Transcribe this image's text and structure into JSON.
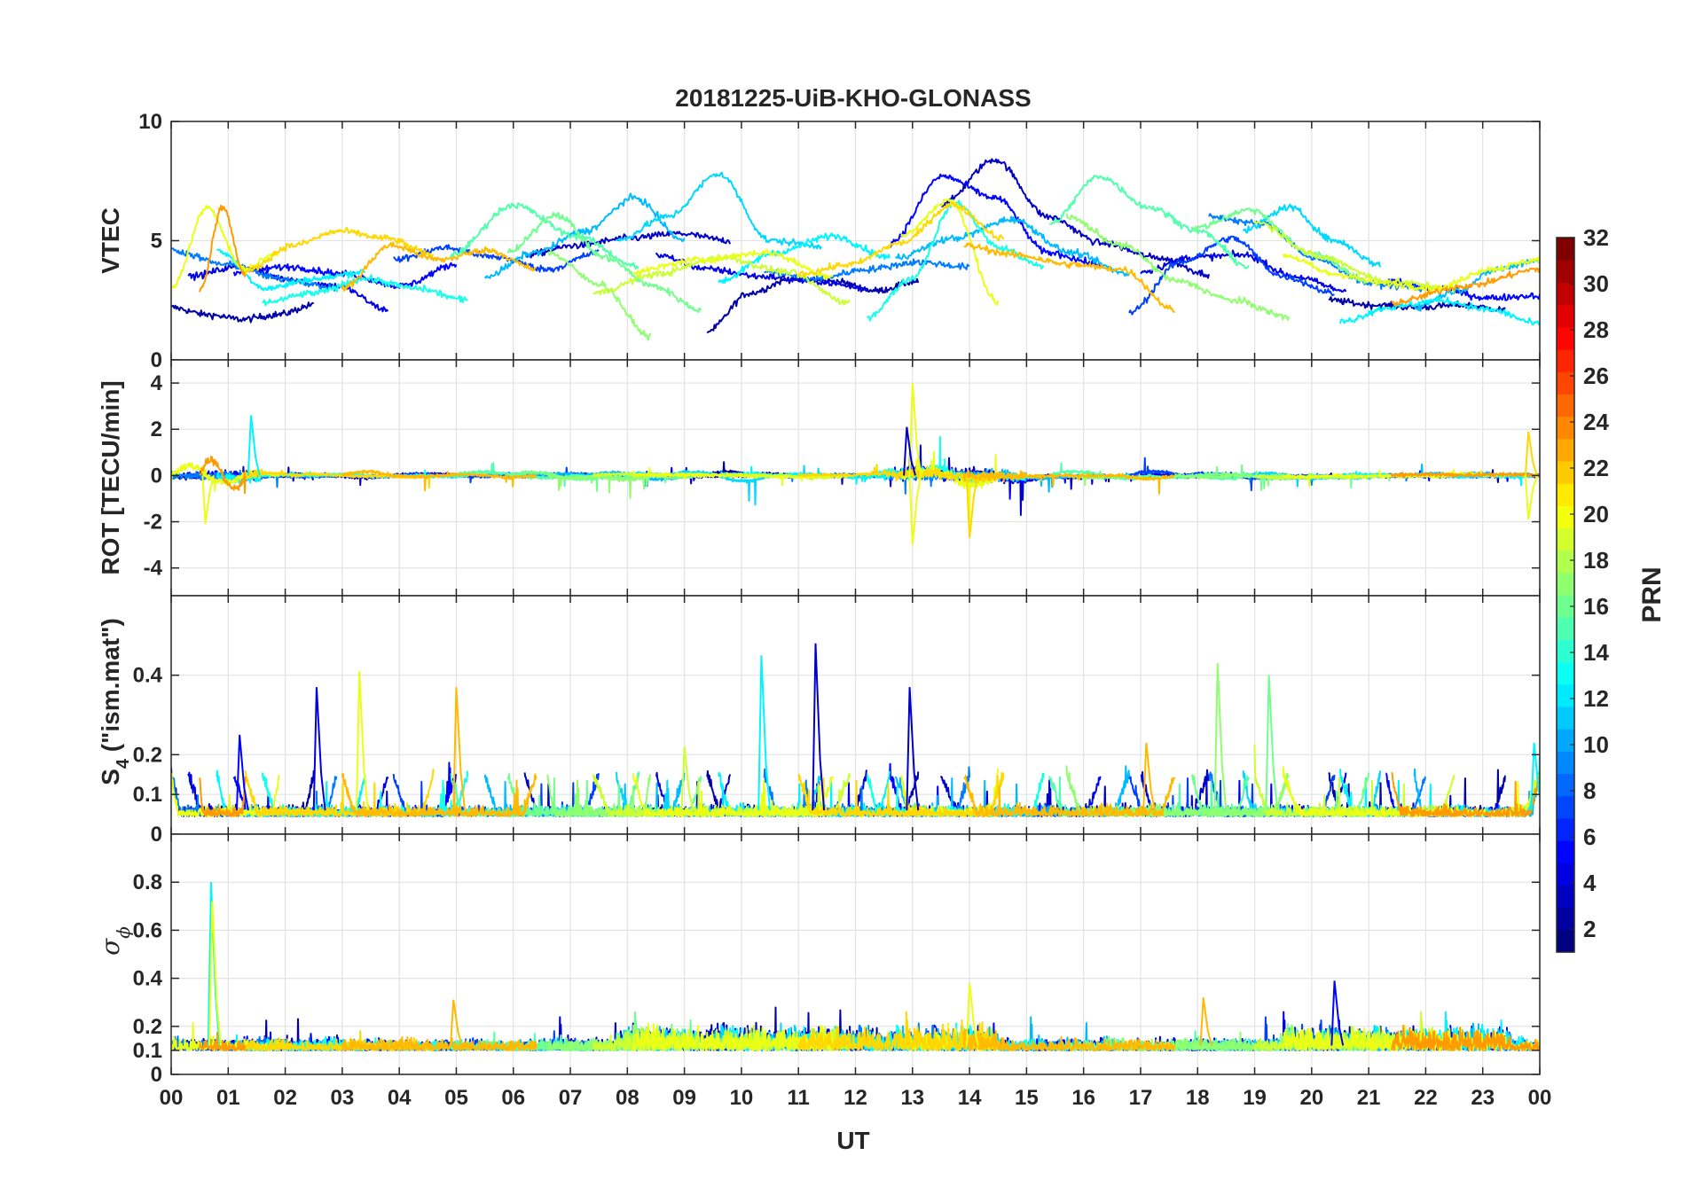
{
  "chart_data": {
    "type": "line",
    "title": "20181225-UiB-KHO-GLONASS",
    "xlabel": "UT",
    "x_tick_labels": [
      "00",
      "01",
      "02",
      "03",
      "04",
      "05",
      "06",
      "07",
      "08",
      "09",
      "10",
      "11",
      "12",
      "13",
      "14",
      "15",
      "16",
      "17",
      "18",
      "19",
      "20",
      "21",
      "22",
      "23",
      "00"
    ],
    "xlim": [
      0,
      24
    ],
    "grid": true,
    "panels": [
      {
        "id": "vtec",
        "ylabel": "VTEC",
        "ylim": [
          0,
          10
        ],
        "yticks": [
          0,
          5,
          10
        ],
        "ytick_labels": [
          "0",
          "5",
          "10"
        ],
        "series_summary": "VTEC per GLONASS PRN, roughly 1 to 8.5 TECU, peak near 14 UT"
      },
      {
        "id": "rot",
        "ylabel": "ROT [TECU/min]",
        "ylim": [
          -5.2,
          5
        ],
        "yticks": [
          -4,
          -2,
          0,
          2,
          4
        ],
        "ytick_labels": [
          "-4",
          "-2",
          "0",
          "2",
          "4"
        ],
        "series_summary": "Rate of TEC mostly within +/-0.5, spikes to about 4 near 13 UT"
      },
      {
        "id": "s4",
        "ylabel_main": "S",
        "ylabel_sub": "4",
        "ylabel_rest": " (\"ism.mat\")",
        "ylim": [
          0,
          0.6
        ],
        "yticks": [
          0,
          0.1,
          0.2,
          0.4
        ],
        "ytick_labels": [
          "0",
          "0.1",
          "0.2",
          "0.4"
        ],
        "series_summary": "Amplitude scintillation index mostly 0.03-0.15, spikes to about 0.48 near 11.3 UT"
      },
      {
        "id": "sigphi",
        "ylabel_main": "σ",
        "ylabel_sub": "ϕ",
        "ylim": [
          0,
          1
        ],
        "yticks": [
          0,
          0.1,
          0.2,
          0.4,
          0.6,
          0.8
        ],
        "ytick_labels": [
          "0",
          "0.1",
          "0.2",
          "0.4",
          "0.6",
          "0.8"
        ],
        "series_summary": "Phase scintillation index mostly 0.08-0.25, spike to about 0.8 near 0.7 UT"
      }
    ],
    "series": [
      {
        "prn": 1,
        "segments": [
          {
            "start": 0.0,
            "end": 2.5,
            "vtec": [
              2.2,
              1.9,
              1.7,
              1.9,
              2.3
            ]
          },
          {
            "start": 9.4,
            "end": 13.1,
            "vtec": [
              1.2,
              2.8,
              3.4,
              3.3,
              2.9,
              3.3
            ]
          },
          {
            "start": 20.3,
            "end": 23.4,
            "vtec": [
              2.5,
              2.3,
              2.2,
              2.3,
              2.1
            ]
          }
        ]
      },
      {
        "prn": 2,
        "segments": [
          {
            "start": 6.2,
            "end": 9.8,
            "vtec": [
              4.4,
              4.8,
              5.1,
              5.3,
              5.0
            ]
          },
          {
            "start": 13.5,
            "end": 18.2,
            "vtec": [
              6.5,
              8.4,
              6.0,
              4.9,
              4.3,
              3.6
            ]
          }
        ]
      },
      {
        "prn": 3,
        "segments": [
          {
            "start": 0.3,
            "end": 3.8,
            "vtec": [
              3.5,
              3.9,
              3.4,
              3.1,
              2.1
            ]
          },
          {
            "start": 8.5,
            "end": 12.2,
            "vtec": [
              4.4,
              3.8,
              3.5,
              3.3,
              3.0
            ]
          },
          {
            "start": 17.0,
            "end": 20.6,
            "vtec": [
              3.7,
              4.3,
              4.4,
              3.5,
              2.9
            ]
          }
        ]
      },
      {
        "prn": 4,
        "segments": [
          {
            "start": 1.1,
            "end": 5.0,
            "vtec": [
              3.7,
              3.9,
              3.6,
              3.1,
              4.0
            ]
          },
          {
            "start": 12.6,
            "end": 16.3,
            "vtec": [
              4.9,
              7.7,
              6.8,
              4.5,
              4.0
            ]
          },
          {
            "start": 21.3,
            "end": 24.0,
            "vtec": [
              3.3,
              3.0,
              2.6,
              2.7
            ]
          }
        ]
      },
      {
        "prn": 6,
        "segments": [
          {
            "start": 3.9,
            "end": 7.5,
            "vtec": [
              4.2,
              4.7,
              4.3,
              3.8,
              4.5
            ]
          },
          {
            "start": 16.8,
            "end": 20.4,
            "vtec": [
              2.0,
              4.1,
              5.1,
              3.5,
              2.8
            ]
          }
        ]
      },
      {
        "prn": 8,
        "segments": [
          {
            "start": 0.0,
            "end": 2.9,
            "vtec": [
              4.6,
              4.0,
              3.4,
              3.0
            ]
          },
          {
            "start": 10.4,
            "end": 14.0,
            "vtec": [
              3.7,
              3.4,
              3.8,
              4.1,
              3.9
            ]
          },
          {
            "start": 18.2,
            "end": 22.0,
            "vtec": [
              6.0,
              5.7,
              4.2,
              3.2,
              3.0
            ]
          }
        ]
      },
      {
        "prn": 10,
        "segments": [
          {
            "start": 5.5,
            "end": 9.0,
            "vtec": [
              3.5,
              4.5,
              5.4,
              6.8,
              5.0
            ]
          },
          {
            "start": 12.7,
            "end": 16.8,
            "vtec": [
              4.3,
              5.1,
              5.9,
              4.5,
              3.6
            ]
          },
          {
            "start": 21.8,
            "end": 24.0,
            "vtec": [
              2.2,
              2.9,
              3.8,
              4.2
            ]
          }
        ]
      },
      {
        "prn": 11,
        "segments": [
          {
            "start": 7.8,
            "end": 11.4,
            "vtec": [
              5.0,
              6.0,
              7.8,
              5.0,
              4.8
            ]
          },
          {
            "start": 18.8,
            "end": 21.2,
            "vtec": [
              5.4,
              6.4,
              5.0,
              4.0
            ]
          }
        ]
      },
      {
        "prn": 12,
        "segments": [
          {
            "start": 0.8,
            "end": 3.4,
            "vtec": [
              4.6,
              3.0,
              3.4,
              3.7
            ]
          },
          {
            "start": 9.6,
            "end": 12.6,
            "vtec": [
              3.3,
              4.5,
              5.2,
              4.3
            ]
          },
          {
            "start": 20.5,
            "end": 24.0,
            "vtec": [
              1.6,
              2.2,
              2.5,
              2.1,
              1.5
            ]
          }
        ]
      },
      {
        "prn": 13,
        "segments": [
          {
            "start": 1.6,
            "end": 5.2,
            "vtec": [
              2.4,
              2.8,
              3.4,
              3.0,
              2.5
            ]
          },
          {
            "start": 12.2,
            "end": 15.3,
            "vtec": [
              1.8,
              3.4,
              6.6,
              4.7,
              3.9
            ]
          }
        ]
      },
      {
        "prn": 15,
        "segments": [
          {
            "start": 4.9,
            "end": 8.2,
            "vtec": [
              4.4,
              6.5,
              5.2,
              3.9
            ]
          },
          {
            "start": 15.4,
            "end": 18.9,
            "vtec": [
              5.7,
              7.7,
              6.4,
              5.4,
              3.9
            ]
          }
        ]
      },
      {
        "prn": 16,
        "segments": [
          {
            "start": 5.9,
            "end": 9.3,
            "vtec": [
              4.5,
              6.1,
              4.3,
              3.1,
              2.1
            ]
          },
          {
            "start": 17.9,
            "end": 21.0,
            "vtec": [
              5.5,
              6.3,
              4.5,
              3.3
            ]
          }
        ]
      },
      {
        "prn": 17,
        "segments": [
          {
            "start": 6.6,
            "end": 8.4,
            "vtec": [
              4.5,
              3.2,
              1.0
            ]
          },
          {
            "start": 15.7,
            "end": 19.6,
            "vtec": [
              6.0,
              4.8,
              3.3,
              2.5,
              1.8
            ]
          }
        ]
      },
      {
        "prn": 19,
        "segments": [
          {
            "start": 7.4,
            "end": 11.9,
            "vtec": [
              2.8,
              3.6,
              4.3,
              3.7,
              2.4
            ]
          },
          {
            "start": 19.0,
            "end": 22.5,
            "vtec": [
              5.8,
              4.3,
              3.3,
              3.0
            ]
          }
        ]
      },
      {
        "prn": 20,
        "segments": [
          {
            "start": 0.0,
            "end": 1.9,
            "vtec": [
              3.0,
              6.4,
              3.8,
              4.5
            ]
          },
          {
            "start": 8.1,
            "end": 11.6,
            "vtec": [
              3.7,
              4.2,
              4.5,
              3.5
            ]
          },
          {
            "start": 12.8,
            "end": 14.5,
            "vtec": [
              5.2,
              6.7,
              2.4
            ]
          },
          {
            "start": 19.5,
            "end": 24.0,
            "vtec": [
              4.4,
              3.6,
              3.2,
              3.0,
              3.8,
              4.2
            ]
          }
        ]
      },
      {
        "prn": 22,
        "segments": [
          {
            "start": 1.3,
            "end": 4.6,
            "vtec": [
              3.7,
              4.8,
              5.4,
              5.1,
              4.4
            ]
          },
          {
            "start": 11.0,
            "end": 14.6,
            "vtec": [
              3.6,
              4.0,
              4.9,
              6.5,
              5.1
            ]
          }
        ]
      },
      {
        "prn": 23,
        "segments": [
          {
            "start": 3.0,
            "end": 6.4,
            "vtec": [
              3.0,
              4.8,
              4.2,
              4.6,
              3.8
            ]
          },
          {
            "start": 13.9,
            "end": 17.6,
            "vtec": [
              4.8,
              4.4,
              4.0,
              3.8,
              2.1
            ]
          }
        ]
      },
      {
        "prn": 24,
        "segments": [
          {
            "start": 0.5,
            "end": 1.3,
            "vtec": [
              2.9,
              6.4,
              3.5
            ]
          },
          {
            "start": 21.4,
            "end": 24.0,
            "vtec": [
              2.4,
              3.1,
              3.8
            ]
          }
        ]
      }
    ],
    "colorbar": {
      "label": "PRN",
      "range": [
        1,
        32
      ],
      "ticks": [
        2,
        4,
        6,
        8,
        10,
        12,
        14,
        16,
        18,
        20,
        22,
        24,
        26,
        28,
        30,
        32
      ],
      "tick_labels": [
        "2",
        "4",
        "6",
        "8",
        "10",
        "12",
        "14",
        "16",
        "18",
        "20",
        "22",
        "24",
        "26",
        "28",
        "30",
        "32"
      ],
      "colormap": "jet"
    }
  }
}
